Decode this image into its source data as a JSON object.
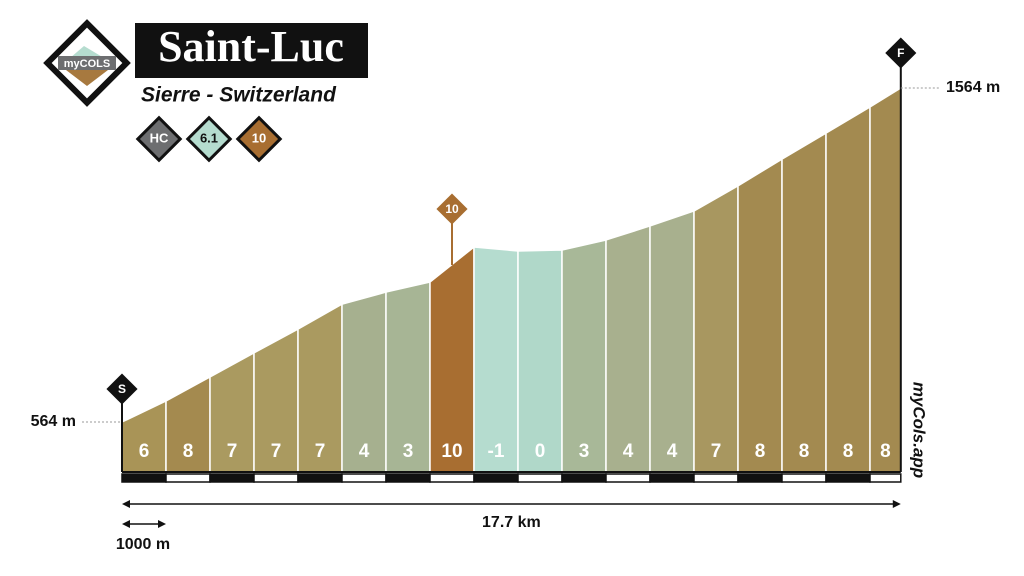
{
  "header": {
    "logo": "myCOLS",
    "title": "Saint-Luc",
    "subtitle": "Sierre - Switzerland",
    "badges": [
      "HC",
      "6.1",
      "10"
    ]
  },
  "chart_data": {
    "type": "profile",
    "x": [
      0,
      1,
      2,
      3,
      4,
      5,
      6,
      7,
      8,
      9,
      10,
      11,
      12,
      13,
      14,
      15,
      16,
      17,
      17.7
    ],
    "elevations": [
      564,
      627,
      699,
      771,
      842,
      917,
      953,
      983,
      1088,
      1076,
      1079,
      1109,
      1151,
      1196,
      1271,
      1351,
      1429,
      1507,
      1564
    ],
    "gradients": [
      6,
      8,
      7,
      7,
      7,
      4,
      3,
      10,
      -1,
      0,
      3,
      4,
      4,
      7,
      8,
      8,
      8,
      8
    ],
    "colors": [
      "#a99457",
      "#a48a4f",
      "#aa9a60",
      "#aa9a60",
      "#aa9a60",
      "#a6b08f",
      "#a7b595",
      "#a86e31",
      "#b5dccf",
      "#b0d8c9",
      "#a8b898",
      "#a8b08e",
      "#a8b08e",
      "#a89760",
      "#a38a50",
      "#a38a50",
      "#a38a50",
      "#a38a50"
    ],
    "xlim": [
      0,
      17.7
    ],
    "ylim": [
      564,
      1564
    ],
    "yticks": [
      {
        "value": 564,
        "label": "564 m"
      },
      {
        "value": 1564,
        "label": "1564 m"
      }
    ],
    "distance": {
      "value": 17.7,
      "label": "17.7 km"
    },
    "scale": {
      "value": 1,
      "label": "1000 m"
    },
    "start_marker": "S",
    "finish_marker": "F",
    "max_marker": "10",
    "watermark": "myCols.app"
  }
}
